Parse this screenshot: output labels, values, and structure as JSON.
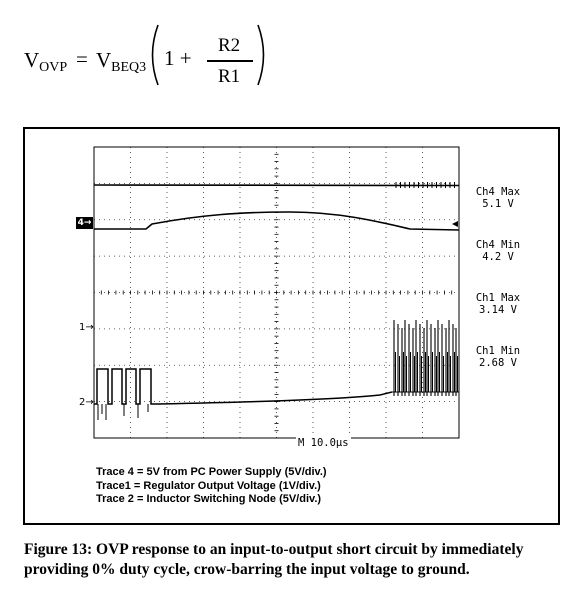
{
  "equation": {
    "lhs": "V",
    "lhs_sub": "OVP",
    "equals": "=",
    "rhs_v": "V",
    "rhs_sub": "BEQ3",
    "one_plus": "1 +",
    "numerator": "R2",
    "denominator": "R1"
  },
  "scope": {
    "channel_readouts": [
      {
        "label": "Ch4 Max",
        "value": "5.1 V"
      },
      {
        "label": "Ch4 Min",
        "value": "4.2 V"
      },
      {
        "label": "Ch1 Max",
        "value": "3.14 V"
      },
      {
        "label": "Ch1 Min",
        "value": "2.68 V"
      }
    ],
    "trace_markers": {
      "ch4": "4",
      "ch1": "1",
      "ch2": "2"
    },
    "timebase": "M 10.0µs",
    "legend": [
      "Trace 4 = 5V from PC Power Supply (5V/div.)",
      "Trace1 = Regulator Output Voltage (1V/div.)",
      "Trace 2 = Inductor Switching Node (5V/div.)"
    ],
    "colors": {
      "trace": "#000000",
      "grid": "#000000",
      "background": "#ffffff"
    }
  },
  "caption": "Figure 13: OVP response to an input-to-output short circuit by  immediately providing 0% duty cycle, crow-barring the  input voltage to ground."
}
